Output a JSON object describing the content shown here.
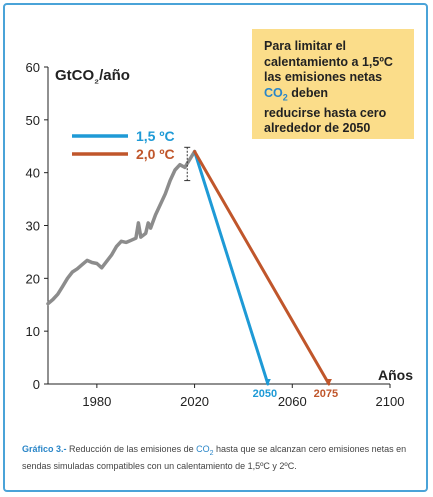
{
  "chart_data": {
    "type": "line",
    "ylabel_parts": [
      "GtCO",
      "₂",
      "/año"
    ],
    "xlabel": "Años",
    "xlim": [
      1960,
      2100
    ],
    "ylim": [
      0,
      60
    ],
    "x_ticks": [
      1980,
      2020,
      2060,
      2100
    ],
    "y_ticks": [
      0,
      10,
      20,
      30,
      40,
      50,
      60
    ],
    "grid": false,
    "legend_position": "top-left",
    "series": [
      {
        "name": "",
        "color": "#8c8c8c",
        "points": [
          [
            1960,
            15.2
          ],
          [
            1962,
            16.0
          ],
          [
            1964,
            17.0
          ],
          [
            1966,
            18.5
          ],
          [
            1968,
            20.0
          ],
          [
            1970,
            21.2
          ],
          [
            1972,
            21.8
          ],
          [
            1974,
            22.6
          ],
          [
            1976,
            23.4
          ],
          [
            1978,
            23.0
          ],
          [
            1980,
            22.8
          ],
          [
            1982,
            22.0
          ],
          [
            1984,
            23.2
          ],
          [
            1986,
            24.4
          ],
          [
            1988,
            26.0
          ],
          [
            1990,
            27.0
          ],
          [
            1992,
            26.8
          ],
          [
            1994,
            27.2
          ],
          [
            1996,
            27.6
          ],
          [
            1997,
            30.5
          ],
          [
            1998,
            27.8
          ],
          [
            2000,
            28.5
          ],
          [
            2001,
            30.5
          ],
          [
            2002,
            29.5
          ],
          [
            2004,
            32.0
          ],
          [
            2006,
            34.0
          ],
          [
            2008,
            36.0
          ],
          [
            2010,
            38.5
          ],
          [
            2012,
            40.5
          ],
          [
            2014,
            41.5
          ],
          [
            2016,
            41.0
          ],
          [
            2018,
            42.5
          ],
          [
            2020,
            44.0
          ]
        ]
      },
      {
        "name": "1,5 ºC",
        "color": "#1e9ad6",
        "points": [
          [
            2020,
            44.0
          ],
          [
            2050,
            0
          ]
        ]
      },
      {
        "name": "2,0 ºC",
        "color": "#c0562b",
        "points": [
          [
            2020,
            44.0
          ],
          [
            2075,
            0
          ]
        ]
      }
    ],
    "annotations": [
      {
        "text": "2050",
        "x": 2050,
        "color": "#1e9ad6"
      },
      {
        "text": "2075",
        "x": 2075,
        "color": "#c0562b"
      }
    ],
    "error_bar": {
      "x": 2017,
      "low": 38.5,
      "high": 44.8
    }
  },
  "callout": {
    "line1": "Para limitar el",
    "line2": "calentamiento a 1,5ºC",
    "line3": "las emisiones netas",
    "line4_co2": "CO",
    "line4_sub": "2",
    "line4_rest": " deben",
    "line5": "reducirse hasta cero",
    "line6": "alrededor de 2050"
  },
  "caption": {
    "label": "Gráfico 3.-",
    "text1": " Reducción de las emisiones de ",
    "co2": "CO",
    "co2_sub": "2",
    "text2": " hasta que se alcanzan cero emisiones netas en sendas simuladas compatibles con un calentamiento de 1,5ºC y 2ºC."
  }
}
